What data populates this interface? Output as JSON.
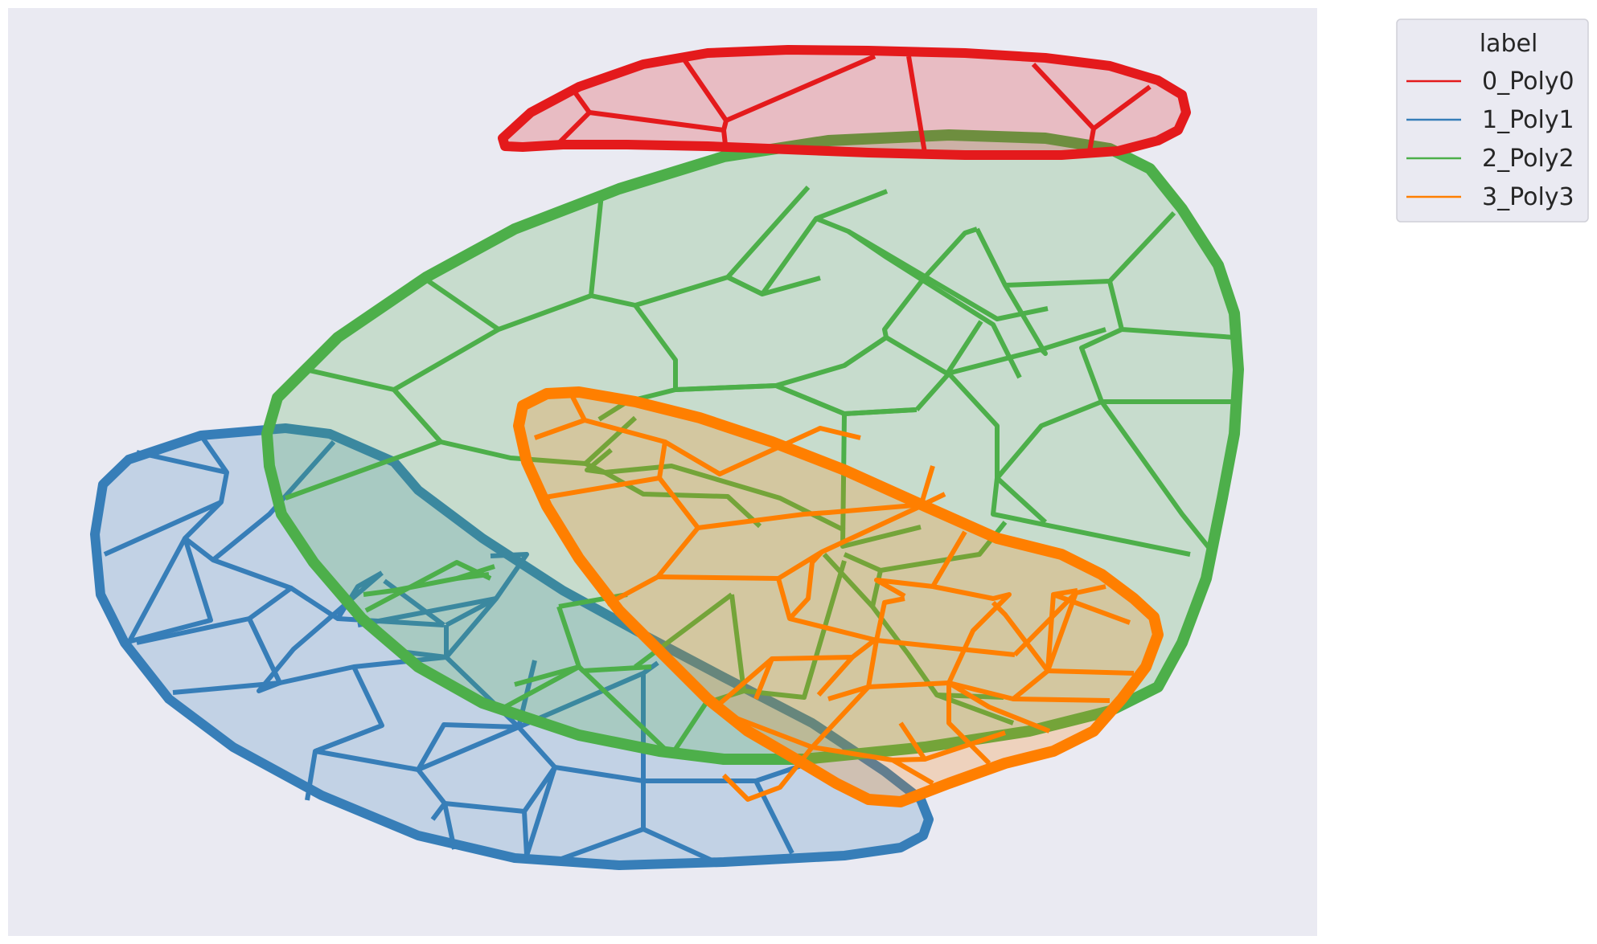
{
  "legend": {
    "title": "label",
    "entries": [
      {
        "label": "0_Poly0",
        "color": "#e41a1c"
      },
      {
        "label": "1_Poly1",
        "color": "#377eb8"
      },
      {
        "label": "2_Poly2",
        "color": "#4daf4a"
      },
      {
        "label": "3_Poly3",
        "color": "#ff7f00"
      }
    ]
  },
  "colors": {
    "plot_background": "#eaeaf2",
    "poly0": "#e41a1c",
    "poly1": "#377eb8",
    "poly2": "#4daf4a",
    "poly3": "#ff7f00"
  }
}
